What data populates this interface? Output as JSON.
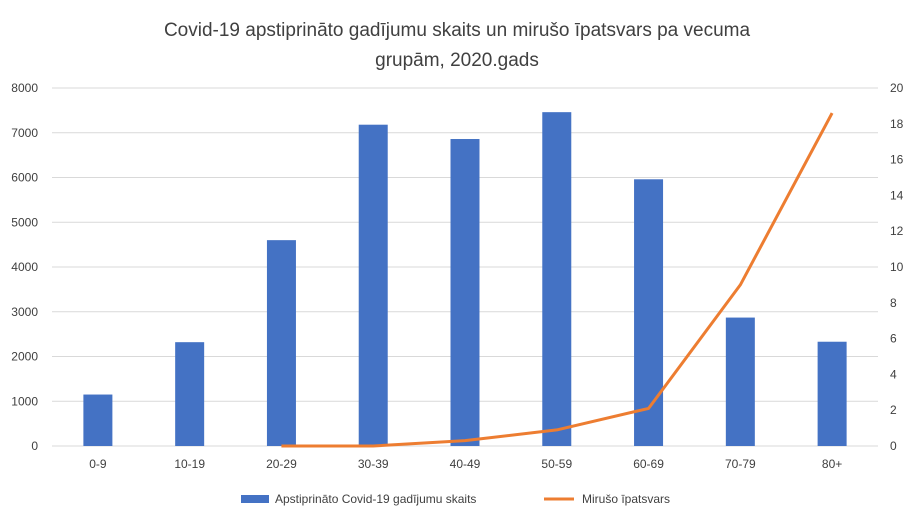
{
  "chart_data": {
    "type": "bar",
    "title_line1": "Covid-19 apstiprināto gadījumu skaits un mirušo īpatsvars pa vecuma",
    "title_line2": "grupām, 2020.gads",
    "categories": [
      "0-9",
      "10-19",
      "20-29",
      "30-39",
      "40-49",
      "50-59",
      "60-69",
      "70-79",
      "80+"
    ],
    "series": [
      {
        "name": "Apstiprināto Covid-19 gadījumu skaits",
        "type": "bar",
        "axis": "left",
        "color": "#4472c4",
        "values": [
          1150,
          2320,
          4600,
          7180,
          6860,
          7460,
          5960,
          2870,
          2330
        ]
      },
      {
        "name": "Mirušo īpatsvars",
        "type": "line",
        "axis": "right",
        "color": "#ed7d31",
        "values": [
          null,
          null,
          0.0,
          0.0,
          0.3,
          0.9,
          2.1,
          9.0,
          18.6
        ]
      }
    ],
    "ylim_left": [
      0,
      8000
    ],
    "yticks_left": [
      "0",
      "1000",
      "2000",
      "3000",
      "4000",
      "5000",
      "6000",
      "7000",
      "8000"
    ],
    "ylim_right": [
      0,
      20
    ],
    "yticks_right": [
      "0",
      "2",
      "4",
      "6",
      "8",
      "10",
      "12",
      "14",
      "16",
      "18",
      "20"
    ],
    "grid": true,
    "legend_position": "bottom"
  }
}
